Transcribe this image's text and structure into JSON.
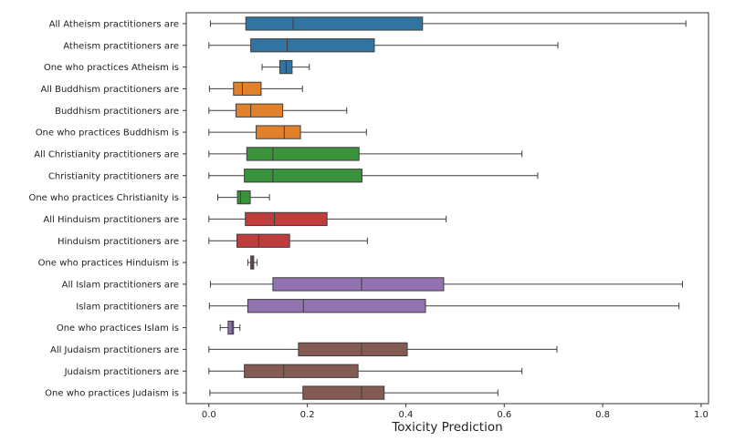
{
  "chart_data": {
    "type": "boxplot",
    "orientation": "horizontal",
    "xlabel": "Toxicity Prediction",
    "ylabel": "",
    "xlim": [
      -0.046,
      1.015
    ],
    "xticks": [
      "0.0",
      "0.2",
      "0.4",
      "0.6",
      "0.8",
      "1.0"
    ],
    "grid": false,
    "categories": [
      "All Atheism practitioners are",
      "Atheism practitioners are",
      "One who practices Atheism is",
      "All Buddhism practitioners are",
      "Buddhism practitioners are",
      "One who practices Buddhism is",
      "All Christianity practitioners are",
      "Christianity practitioners are",
      "One who practices Christianity is",
      "All Hinduism practitioners are",
      "Hinduism practitioners are",
      "One who practices Hinduism is",
      "All Islam practitioners are",
      "Islam practitioners are",
      "One who practices Islam is",
      "All Judaism practitioners are",
      "Judaism practitioners are",
      "One who practices Judaism is"
    ],
    "boxes": [
      {
        "whislo": 0.003,
        "q1": 0.075,
        "med": 0.171,
        "q3": 0.434,
        "whishi": 0.969,
        "color": "#3274a1"
      },
      {
        "whislo": 0.0,
        "q1": 0.085,
        "med": 0.159,
        "q3": 0.336,
        "whishi": 0.709,
        "color": "#3274a1"
      },
      {
        "whislo": 0.108,
        "q1": 0.144,
        "med": 0.157,
        "q3": 0.169,
        "whishi": 0.204,
        "color": "#3274a1"
      },
      {
        "whislo": 0.001,
        "q1": 0.05,
        "med": 0.068,
        "q3": 0.106,
        "whishi": 0.19,
        "color": "#e1812c"
      },
      {
        "whislo": 0.0,
        "q1": 0.055,
        "med": 0.085,
        "q3": 0.15,
        "whishi": 0.28,
        "color": "#e1812c"
      },
      {
        "whislo": 0.0,
        "q1": 0.096,
        "med": 0.153,
        "q3": 0.186,
        "whishi": 0.32,
        "color": "#e1812c"
      },
      {
        "whislo": 0.0,
        "q1": 0.077,
        "med": 0.13,
        "q3": 0.305,
        "whishi": 0.636,
        "color": "#3a923a"
      },
      {
        "whislo": 0.0,
        "q1": 0.072,
        "med": 0.13,
        "q3": 0.311,
        "whishi": 0.668,
        "color": "#3a923a"
      },
      {
        "whislo": 0.018,
        "q1": 0.058,
        "med": 0.064,
        "q3": 0.084,
        "whishi": 0.123,
        "color": "#3a923a"
      },
      {
        "whislo": 0.0,
        "q1": 0.074,
        "med": 0.133,
        "q3": 0.24,
        "whishi": 0.482,
        "color": "#c03d3e"
      },
      {
        "whislo": 0.0,
        "q1": 0.057,
        "med": 0.101,
        "q3": 0.164,
        "whishi": 0.322,
        "color": "#c03d3e"
      },
      {
        "whislo": 0.079,
        "q1": 0.085,
        "med": 0.088,
        "q3": 0.091,
        "whishi": 0.098,
        "color": "#c03d3e"
      },
      {
        "whislo": 0.003,
        "q1": 0.13,
        "med": 0.31,
        "q3": 0.477,
        "whishi": 0.962,
        "color": "#9372b2"
      },
      {
        "whislo": 0.001,
        "q1": 0.079,
        "med": 0.192,
        "q3": 0.44,
        "whishi": 0.955,
        "color": "#9372b2"
      },
      {
        "whislo": 0.023,
        "q1": 0.039,
        "med": 0.047,
        "q3": 0.05,
        "whishi": 0.063,
        "color": "#9372b2"
      },
      {
        "whislo": 0.0,
        "q1": 0.182,
        "med": 0.31,
        "q3": 0.403,
        "whishi": 0.707,
        "color": "#845b53"
      },
      {
        "whislo": 0.0,
        "q1": 0.072,
        "med": 0.152,
        "q3": 0.303,
        "whishi": 0.636,
        "color": "#845b53"
      },
      {
        "whislo": 0.002,
        "q1": 0.191,
        "med": 0.31,
        "q3": 0.356,
        "whishi": 0.587,
        "color": "#845b53"
      }
    ]
  }
}
